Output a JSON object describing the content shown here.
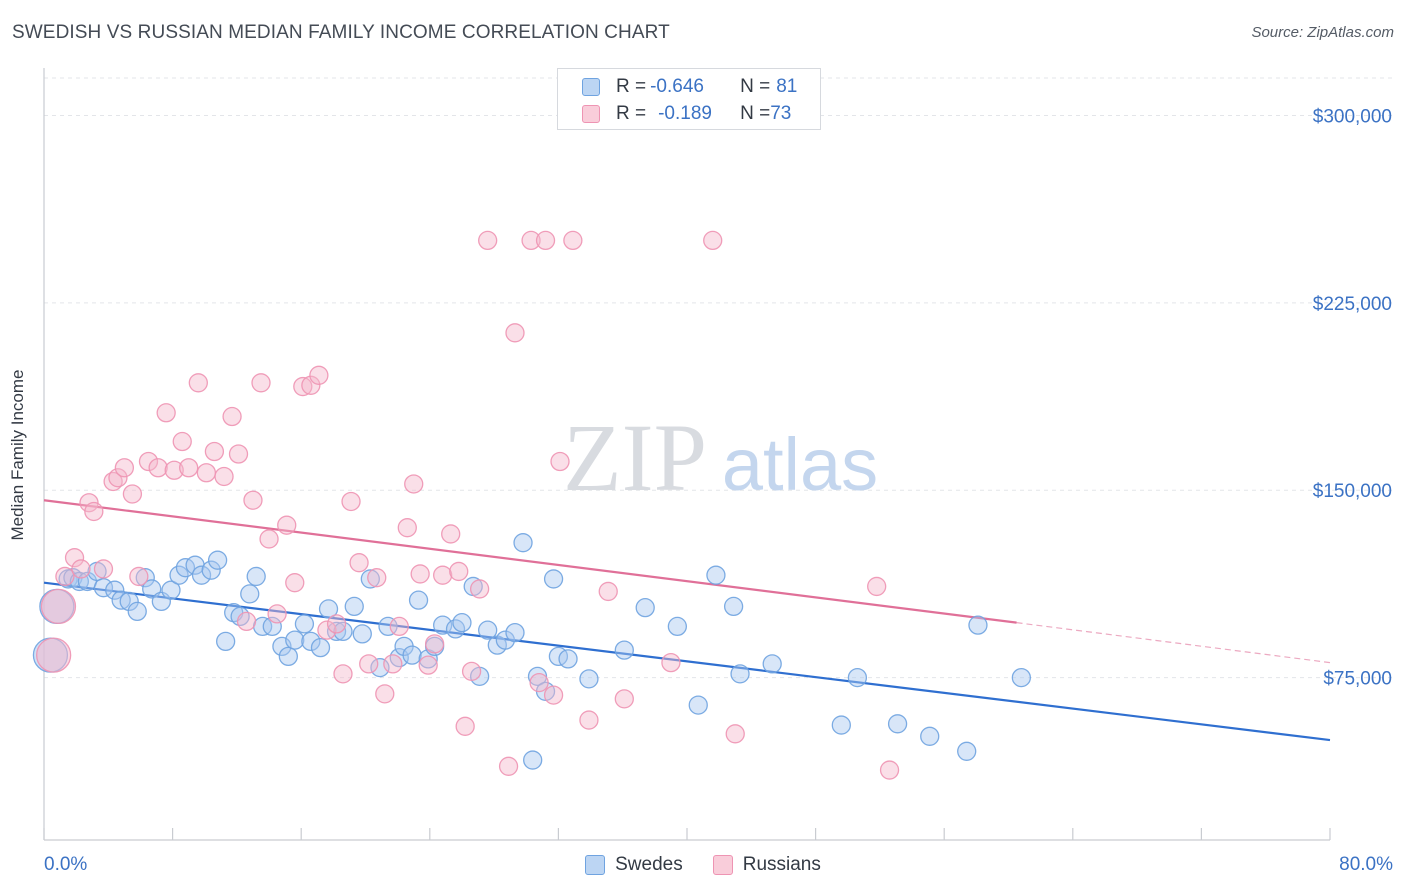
{
  "header": {
    "title": "SWEDISH VS RUSSIAN MEDIAN FAMILY INCOME CORRELATION CHART",
    "source": "Source: ZipAtlas.com"
  },
  "watermark": {
    "zip": "ZIP",
    "atlas": "atlas"
  },
  "legend_stats": [
    {
      "r_label": "R = ",
      "r_value": "-0.646",
      "n_label": "N = ",
      "n_value": "81",
      "color": "#a8c8f0"
    },
    {
      "r_label": "R = ",
      "r_value": "-0.189",
      "n_label": "N = ",
      "n_value": "73",
      "color": "#f5b8cc"
    }
  ],
  "chart_data": {
    "type": "scatter",
    "title": "SWEDISH VS RUSSIAN MEDIAN FAMILY INCOME CORRELATION CHART",
    "xlabel": "",
    "ylabel": "Median Family Income",
    "xlim": [
      0,
      80
    ],
    "ylim": [
      10000,
      315000
    ],
    "x_tick_labels": [
      "0.0%",
      "80.0%"
    ],
    "y_ticks": [
      75000,
      150000,
      225000,
      300000
    ],
    "y_tick_labels": [
      "$75,000",
      "$150,000",
      "$225,000",
      "$300,000"
    ],
    "grid": true,
    "legend_position": "bottom",
    "series": [
      {
        "name": "Swedes",
        "color": "#6fa3e0",
        "fill": "#a8c8f0",
        "trend": {
          "x": [
            0,
            80
          ],
          "y": [
            113000,
            50000
          ],
          "color": "#2f6fd0"
        },
        "points": [
          [
            1.5,
            114500
          ],
          [
            1.8,
            115000
          ],
          [
            2.2,
            113500
          ],
          [
            2.7,
            113500
          ],
          [
            3.3,
            117500
          ],
          [
            3.7,
            111000
          ],
          [
            4.4,
            110000
          ],
          [
            4.8,
            106000
          ],
          [
            5.3,
            105500
          ],
          [
            5.8,
            101500
          ],
          [
            6.3,
            115000
          ],
          [
            6.7,
            110500
          ],
          [
            7.3,
            105500
          ],
          [
            7.9,
            110000
          ],
          [
            8.4,
            116000
          ],
          [
            8.8,
            119000
          ],
          [
            9.4,
            120000
          ],
          [
            9.8,
            116000
          ],
          [
            10.4,
            118000
          ],
          [
            10.8,
            122000
          ],
          [
            11.3,
            89500
          ],
          [
            11.8,
            101000
          ],
          [
            12.2,
            99500
          ],
          [
            12.8,
            108500
          ],
          [
            13.2,
            115500
          ],
          [
            13.6,
            95500
          ],
          [
            14.2,
            95500
          ],
          [
            14.8,
            87500
          ],
          [
            15.2,
            83500
          ],
          [
            15.6,
            90000
          ],
          [
            16.2,
            96500
          ],
          [
            16.6,
            89500
          ],
          [
            17.2,
            87000
          ],
          [
            17.7,
            102500
          ],
          [
            18.2,
            93500
          ],
          [
            18.6,
            93500
          ],
          [
            19.3,
            103500
          ],
          [
            19.8,
            92500
          ],
          [
            20.3,
            114500
          ],
          [
            20.9,
            79000
          ],
          [
            21.4,
            95500
          ],
          [
            22.1,
            83000
          ],
          [
            22.4,
            87500
          ],
          [
            22.9,
            84000
          ],
          [
            23.3,
            106000
          ],
          [
            23.9,
            82500
          ],
          [
            24.3,
            87500
          ],
          [
            24.8,
            96000
          ],
          [
            25.6,
            94500
          ],
          [
            26.0,
            97000
          ],
          [
            26.7,
            111500
          ],
          [
            27.1,
            75500
          ],
          [
            27.6,
            94000
          ],
          [
            28.2,
            88000
          ],
          [
            28.7,
            90000
          ],
          [
            29.3,
            93000
          ],
          [
            29.8,
            129000
          ],
          [
            30.4,
            42000
          ],
          [
            30.7,
            75500
          ],
          [
            31.2,
            69500
          ],
          [
            31.7,
            114500
          ],
          [
            32.0,
            83500
          ],
          [
            32.6,
            82500
          ],
          [
            33.9,
            74500
          ],
          [
            36.1,
            86000
          ],
          [
            37.4,
            103000
          ],
          [
            39.4,
            95500
          ],
          [
            40.7,
            64000
          ],
          [
            41.8,
            116000
          ],
          [
            42.9,
            103500
          ],
          [
            43.3,
            76500
          ],
          [
            45.3,
            80500
          ],
          [
            49.6,
            56000
          ],
          [
            50.6,
            75000
          ],
          [
            53.1,
            56500
          ],
          [
            55.1,
            51500
          ],
          [
            57.4,
            45500
          ],
          [
            58.1,
            96000
          ],
          [
            60.8,
            75000
          ],
          [
            0.8,
            103500
          ],
          [
            0.4,
            84000
          ]
        ],
        "big_points": [
          [
            0.8,
            103500
          ],
          [
            0.4,
            84000
          ]
        ]
      },
      {
        "name": "Russians",
        "color": "#ee94b3",
        "fill": "#f5b8cc",
        "trend": {
          "x": [
            0,
            60.5
          ],
          "y": [
            146000,
            97000
          ],
          "color": "#e07098",
          "dashed_to": [
            80,
            81000
          ]
        },
        "points": [
          [
            1.3,
            115500
          ],
          [
            1.9,
            123000
          ],
          [
            2.3,
            118500
          ],
          [
            2.8,
            145000
          ],
          [
            3.1,
            141500
          ],
          [
            3.7,
            118500
          ],
          [
            4.3,
            153500
          ],
          [
            4.6,
            155000
          ],
          [
            5.0,
            159000
          ],
          [
            5.5,
            148500
          ],
          [
            5.9,
            115500
          ],
          [
            6.5,
            161500
          ],
          [
            7.1,
            159000
          ],
          [
            7.6,
            181000
          ],
          [
            8.1,
            158000
          ],
          [
            8.6,
            169500
          ],
          [
            9.0,
            159000
          ],
          [
            9.6,
            193000
          ],
          [
            10.1,
            157000
          ],
          [
            10.6,
            165500
          ],
          [
            11.2,
            155500
          ],
          [
            11.7,
            179500
          ],
          [
            12.1,
            164500
          ],
          [
            12.6,
            97500
          ],
          [
            13.0,
            146000
          ],
          [
            13.5,
            193000
          ],
          [
            14.0,
            130500
          ],
          [
            14.5,
            100500
          ],
          [
            15.1,
            136000
          ],
          [
            15.6,
            113000
          ],
          [
            16.1,
            191500
          ],
          [
            16.6,
            192000
          ],
          [
            17.1,
            196000
          ],
          [
            17.6,
            94000
          ],
          [
            18.2,
            96500
          ],
          [
            18.6,
            76500
          ],
          [
            19.1,
            145500
          ],
          [
            19.6,
            121000
          ],
          [
            20.2,
            80500
          ],
          [
            20.7,
            115000
          ],
          [
            21.2,
            68500
          ],
          [
            21.7,
            80500
          ],
          [
            22.1,
            95500
          ],
          [
            22.6,
            135000
          ],
          [
            23.0,
            152500
          ],
          [
            23.4,
            116500
          ],
          [
            23.9,
            80000
          ],
          [
            24.3,
            88500
          ],
          [
            24.8,
            116000
          ],
          [
            25.3,
            132500
          ],
          [
            25.8,
            117500
          ],
          [
            26.2,
            55500
          ],
          [
            26.6,
            77500
          ],
          [
            27.1,
            110500
          ],
          [
            27.6,
            250000
          ],
          [
            28.9,
            39500
          ],
          [
            29.3,
            213000
          ],
          [
            30.3,
            250000
          ],
          [
            30.8,
            73000
          ],
          [
            31.2,
            250000
          ],
          [
            31.7,
            68000
          ],
          [
            32.1,
            161500
          ],
          [
            32.9,
            250000
          ],
          [
            33.9,
            58000
          ],
          [
            35.1,
            109500
          ],
          [
            36.1,
            66500
          ],
          [
            39.0,
            81000
          ],
          [
            41.6,
            250000
          ],
          [
            43.0,
            52500
          ],
          [
            51.8,
            111500
          ],
          [
            52.6,
            38000
          ],
          [
            0.9,
            103500
          ],
          [
            0.6,
            84000
          ]
        ]
      }
    ]
  },
  "bottom_legend": [
    {
      "label": "Swedes",
      "color": "#a8c8f0"
    },
    {
      "label": "Russians",
      "color": "#f5b8cc"
    }
  ]
}
